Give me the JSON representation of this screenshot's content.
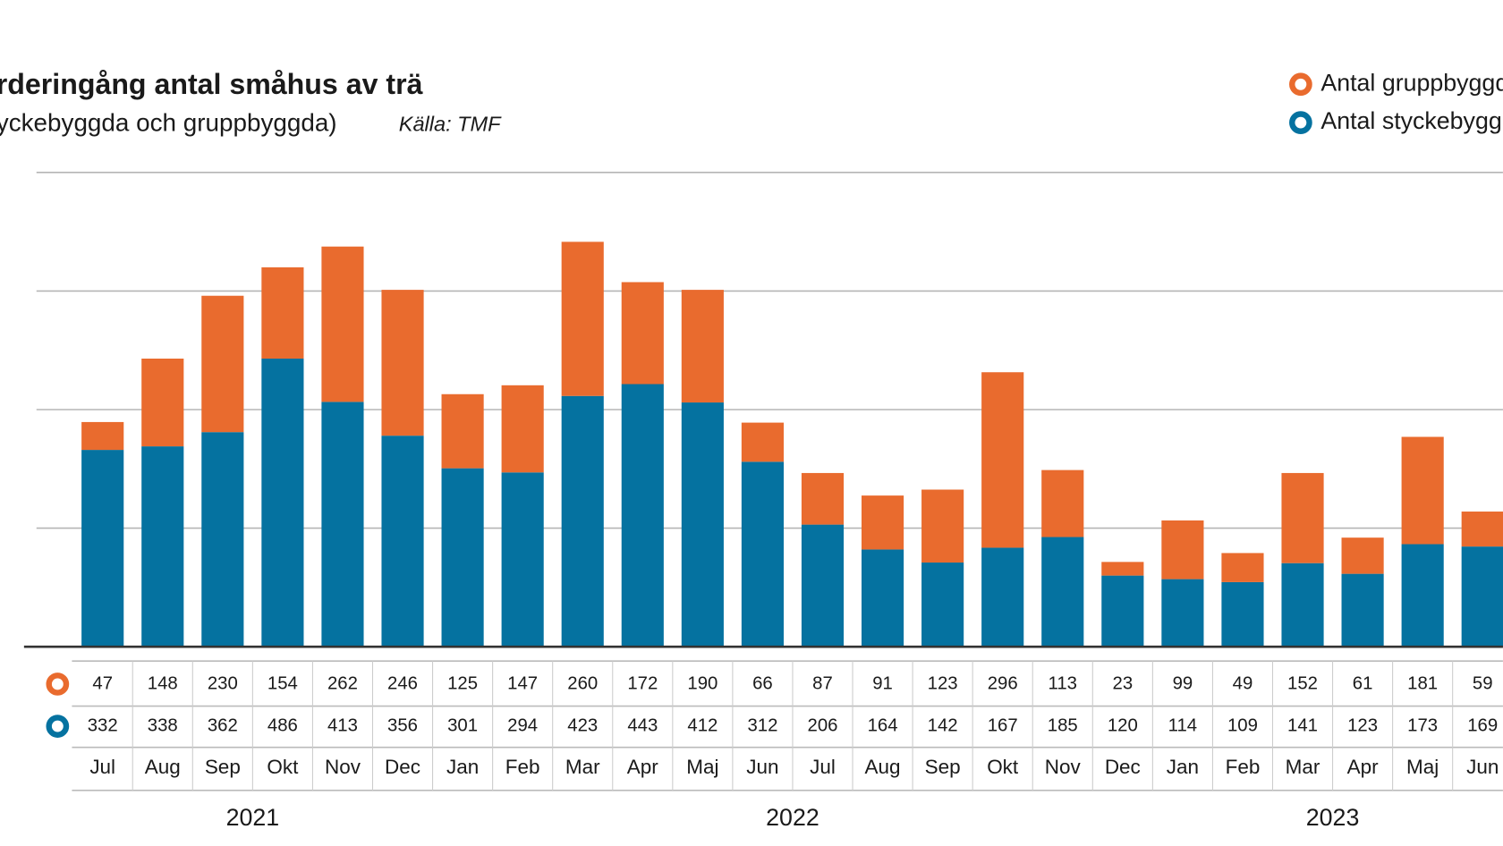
{
  "chart_data": {
    "type": "stacked_bar",
    "title": "rderingång antal småhus av trä",
    "subtitle": "yckebyggda och gruppbyggda)",
    "source": "Källa: TMF",
    "categories": [
      "Jul",
      "Aug",
      "Sep",
      "Okt",
      "Nov",
      "Dec",
      "Jan",
      "Feb",
      "Mar",
      "Apr",
      "Maj",
      "Jun",
      "Jul",
      "Aug",
      "Sep",
      "Okt",
      "Nov",
      "Dec",
      "Jan",
      "Feb",
      "Mar",
      "Apr",
      "Maj",
      "Jun"
    ],
    "years": [
      "2021",
      "2022",
      "2023"
    ],
    "series": [
      {
        "name": "Antal gruppbyggd",
        "color": "#e96b2e",
        "values": [
          47,
          148,
          230,
          154,
          262,
          246,
          125,
          147,
          260,
          172,
          190,
          66,
          87,
          91,
          123,
          296,
          113,
          23,
          99,
          49,
          152,
          61,
          181,
          59
        ]
      },
      {
        "name": "Antal styckebygg",
        "color": "#0572a0",
        "values": [
          332,
          338,
          362,
          486,
          413,
          356,
          301,
          294,
          423,
          443,
          412,
          312,
          206,
          164,
          142,
          167,
          185,
          120,
          114,
          109,
          141,
          123,
          173,
          169
        ]
      }
    ],
    "ylim": [
      0,
      800
    ],
    "yticks": [
      0,
      200,
      400,
      600,
      800
    ],
    "grid": true
  }
}
